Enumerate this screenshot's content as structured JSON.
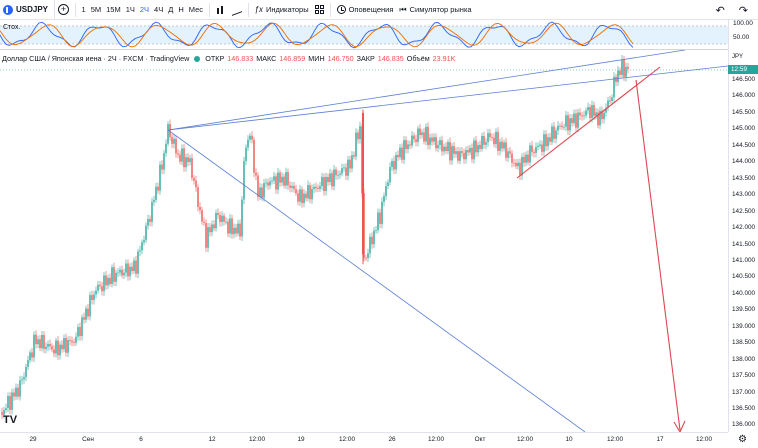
{
  "toolbar": {
    "symbol": "USDJPY",
    "timeframes": [
      "1",
      "1Ч",
      "5М",
      "15М",
      "1Ч",
      "2Ч",
      "4Ч",
      "Д",
      "Н",
      "Мес"
    ],
    "active_timeframe": "2Ч",
    "indicators_label": "Индикаторы",
    "alerts_label": "Оповещения",
    "replay_label": "Симулятор рынка"
  },
  "stoch": {
    "label": "Стох.",
    "scale_top": "100.00",
    "scale_mid": "50.00",
    "k_color": "#2962ff",
    "d_color": "#ef6c00",
    "band_color": "#e3f2fd"
  },
  "legend": {
    "title": "Доллар США / Японская иена · 2Ч · FXCM · TradingView",
    "open_label": "ОТКР",
    "open": "146.833",
    "high_label": "МАКС",
    "high": "146.859",
    "low_label": "МИН",
    "low": "146.750",
    "close_label": "ЗАКР",
    "close": "146.835",
    "volume_label": "Объём",
    "volume": "23.91K"
  },
  "price_scale": {
    "currency": "JPY",
    "ticks": [
      "146.500",
      "146.000",
      "145.500",
      "145.000",
      "144.500",
      "144.000",
      "143.500",
      "143.000",
      "142.500",
      "142.000",
      "141.500",
      "141.000",
      "140.500",
      "140.000",
      "139.500",
      "139.000",
      "138.500",
      "138.000",
      "137.500",
      "137.000",
      "136.500",
      "136.000"
    ],
    "current_time_label": "12:59",
    "current_price_color": "#26a69a",
    "time_label_color": "#131722"
  },
  "time_scale": {
    "ticks": [
      "29",
      "Сен",
      "6",
      "12",
      "12:00",
      "19",
      "12:00",
      "26",
      "12:00",
      "Окт",
      "12:00",
      "10",
      "12:00",
      "17",
      "12:00"
    ]
  },
  "colors": {
    "up_candle": "#26a69a",
    "down_candle": "#ef5350",
    "trendline_blue": "#5b7fd1",
    "trendline_red": "#e0464f"
  },
  "watermark": "TV"
}
